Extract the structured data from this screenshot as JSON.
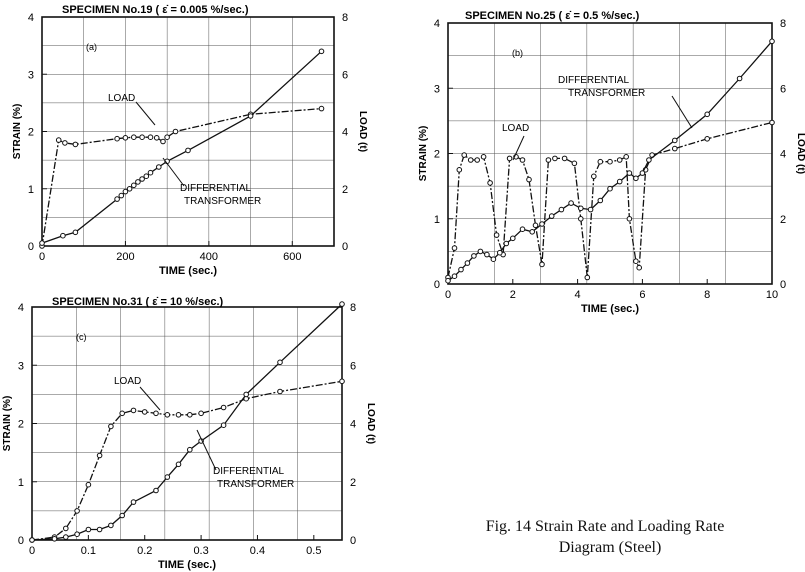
{
  "caption": {
    "line1": "Fig. 14 Strain Rate and Loading Rate",
    "line2": "Diagram (Steel)"
  },
  "chart_data": [
    {
      "type": "line",
      "panel": "(a)",
      "title": "SPECIMEN No.19 ( ε̇ = 0.005 %/sec.)",
      "xlabel": "TIME (sec.)",
      "ylabel": "STRAIN (%)",
      "y2label": "LOAD (t)",
      "xlim": [
        0,
        700
      ],
      "ylim": [
        0,
        4
      ],
      "y2lim": [
        0,
        8
      ],
      "xticks": [
        0,
        200,
        400,
        600
      ],
      "yticks": [
        0,
        1,
        2,
        3,
        4
      ],
      "y2ticks": [
        0,
        2,
        4,
        6,
        8
      ],
      "grid": true,
      "series": [
        {
          "name": "LOAD",
          "axis": "right",
          "style": "dash-dot",
          "x": [
            0,
            40,
            55,
            80,
            180,
            200,
            220,
            240,
            260,
            275,
            290,
            300,
            320,
            500,
            670
          ],
          "y": [
            0,
            3.7,
            3.6,
            3.55,
            3.75,
            3.78,
            3.8,
            3.8,
            3.8,
            3.78,
            3.65,
            3.8,
            4.0,
            4.6,
            4.8
          ]
        },
        {
          "name": "DIFFERENTIAL TRANSFORMER",
          "axis": "left",
          "style": "solid",
          "x": [
            0,
            50,
            80,
            180,
            190,
            200,
            210,
            220,
            230,
            240,
            250,
            260,
            280,
            300,
            350,
            500,
            670
          ],
          "y": [
            0.05,
            0.18,
            0.24,
            0.82,
            0.88,
            0.95,
            1.0,
            1.06,
            1.12,
            1.17,
            1.22,
            1.28,
            1.38,
            1.48,
            1.67,
            2.27,
            3.4
          ]
        }
      ],
      "annotations": [
        "LOAD",
        "DIFFERENTIAL",
        "TRANSFORMER"
      ]
    },
    {
      "type": "line",
      "panel": "(b)",
      "title": "SPECIMEN No.25 ( ε̇ = 0.5 %/sec.)",
      "xlabel": "TIME (sec.)",
      "ylabel": "STRAIN (%)",
      "y2label": "LOAD (t)",
      "xlim": [
        0,
        10
      ],
      "ylim": [
        0,
        4
      ],
      "y2lim": [
        0,
        8
      ],
      "xticks": [
        0,
        2,
        4,
        6,
        8,
        10
      ],
      "yticks": [
        0,
        1,
        2,
        3,
        4
      ],
      "y2ticks": [
        0,
        2,
        4,
        6,
        8
      ],
      "grid": true,
      "series": [
        {
          "name": "LOAD",
          "axis": "right",
          "style": "dash-dot",
          "x": [
            0,
            0.2,
            0.35,
            0.5,
            0.7,
            0.9,
            1.1,
            1.3,
            1.5,
            1.7,
            1.9,
            2.1,
            2.3,
            2.5,
            2.7,
            2.9,
            3.1,
            3.3,
            3.6,
            3.9,
            4.1,
            4.3,
            4.5,
            4.7,
            5.0,
            5.3,
            5.5,
            5.6,
            5.8,
            5.9,
            6.1,
            6.3,
            7.0,
            8.0,
            10.0
          ],
          "y": [
            0.2,
            1.1,
            3.5,
            3.95,
            3.8,
            3.8,
            3.9,
            3.1,
            1.5,
            0.9,
            3.85,
            3.9,
            3.8,
            3.2,
            1.8,
            0.6,
            3.8,
            3.85,
            3.85,
            3.7,
            2.0,
            0.2,
            3.3,
            3.75,
            3.75,
            3.8,
            3.9,
            2.0,
            0.7,
            0.5,
            3.5,
            3.95,
            4.15,
            4.45,
            4.95
          ]
        },
        {
          "name": "DIFFERENTIAL TRANSFORMER",
          "axis": "left",
          "style": "solid",
          "x": [
            0,
            0.2,
            0.4,
            0.6,
            0.8,
            1.0,
            1.2,
            1.4,
            1.6,
            1.8,
            2.0,
            2.3,
            2.6,
            2.9,
            3.2,
            3.5,
            3.8,
            4.1,
            4.4,
            4.7,
            5.0,
            5.3,
            5.6,
            5.8,
            6.0,
            6.2,
            7.0,
            8.0,
            9.0,
            10.0
          ],
          "y": [
            0.05,
            0.12,
            0.22,
            0.32,
            0.43,
            0.5,
            0.45,
            0.38,
            0.48,
            0.62,
            0.7,
            0.84,
            0.8,
            0.92,
            1.04,
            1.14,
            1.24,
            1.16,
            1.14,
            1.28,
            1.46,
            1.57,
            1.7,
            1.62,
            1.7,
            1.9,
            2.2,
            2.6,
            3.15,
            3.72
          ]
        }
      ],
      "annotations": [
        "LOAD",
        "DIFFERENTIAL",
        "TRANSFORMER"
      ]
    },
    {
      "type": "line",
      "panel": "(c)",
      "title": "SPECIMEN No.31 ( ε̇ = 10 %/sec.)",
      "xlabel": "TIME (sec.)",
      "ylabel": "STRAIN (%)",
      "y2label": "LOAD (t)",
      "xlim": [
        0,
        0.55
      ],
      "ylim": [
        0,
        4
      ],
      "y2lim": [
        0,
        8
      ],
      "xticks": [
        0,
        0.1,
        0.2,
        0.3,
        0.4,
        0.5
      ],
      "xticklabels": [
        "0",
        "0.1",
        "0.2",
        "0.3",
        "0.4",
        "0.5"
      ],
      "yticks": [
        0,
        1,
        2,
        3,
        4
      ],
      "y2ticks": [
        0,
        2,
        4,
        6,
        8
      ],
      "grid": true,
      "series": [
        {
          "name": "LOAD",
          "axis": "right",
          "style": "dash-dot",
          "x": [
            0,
            0.04,
            0.06,
            0.08,
            0.1,
            0.12,
            0.14,
            0.16,
            0.18,
            0.2,
            0.22,
            0.24,
            0.26,
            0.28,
            0.3,
            0.34,
            0.38,
            0.44,
            0.55
          ],
          "y": [
            0,
            0.1,
            0.4,
            1.0,
            1.9,
            2.9,
            3.9,
            4.35,
            4.45,
            4.4,
            4.35,
            4.3,
            4.3,
            4.3,
            4.35,
            4.55,
            4.85,
            5.1,
            5.45
          ]
        },
        {
          "name": "DIFFERENTIAL TRANSFORMER",
          "axis": "left",
          "style": "solid",
          "x": [
            0,
            0.04,
            0.06,
            0.08,
            0.1,
            0.12,
            0.14,
            0.16,
            0.18,
            0.22,
            0.24,
            0.26,
            0.28,
            0.3,
            0.34,
            0.38,
            0.44,
            0.55
          ],
          "y": [
            0,
            0.02,
            0.05,
            0.1,
            0.18,
            0.18,
            0.25,
            0.42,
            0.65,
            0.85,
            1.08,
            1.3,
            1.55,
            1.7,
            1.97,
            2.5,
            3.05,
            4.05
          ]
        }
      ],
      "annotations": [
        "LOAD",
        "DIFFERENTIAL",
        "TRANSFORMER"
      ]
    }
  ]
}
